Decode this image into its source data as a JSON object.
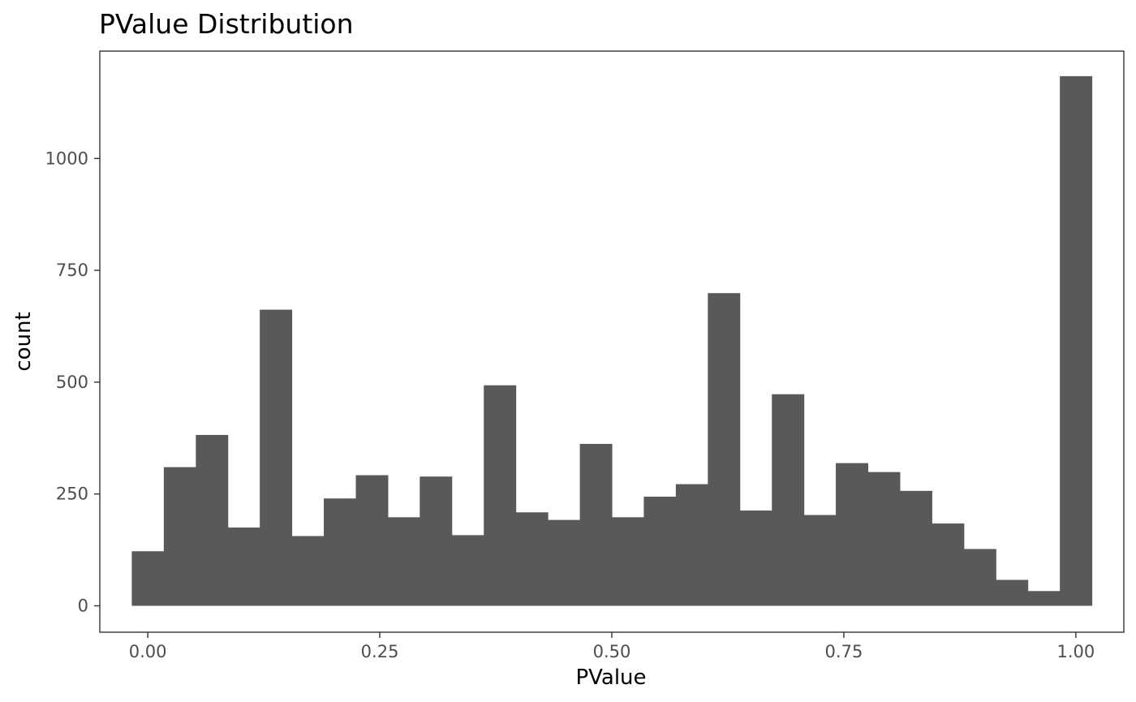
{
  "chart_data": {
    "type": "bar",
    "title": "PValue Distribution",
    "xlabel": "PValue",
    "ylabel": "count",
    "xlim": [
      -0.0517,
      1.0517
    ],
    "ylim": [
      -59,
      1240
    ],
    "x_ticks": [
      0.0,
      0.25,
      0.5,
      0.75,
      1.0
    ],
    "x_tick_labels": [
      "0.00",
      "0.25",
      "0.50",
      "0.75",
      "1.00"
    ],
    "y_ticks": [
      0,
      250,
      500,
      750,
      1000
    ],
    "y_tick_labels": [
      "0",
      "250",
      "500",
      "750",
      "1000"
    ],
    "grid": false,
    "bin_width": 0.0345,
    "bin_centers": [
      0.0,
      0.0345,
      0.069,
      0.1034,
      0.1379,
      0.1724,
      0.2069,
      0.2414,
      0.2759,
      0.3103,
      0.3448,
      0.3793,
      0.4138,
      0.4483,
      0.4828,
      0.5172,
      0.5517,
      0.5862,
      0.6207,
      0.6552,
      0.6897,
      0.7241,
      0.7586,
      0.7931,
      0.8276,
      0.8621,
      0.8966,
      0.931,
      0.9655,
      1.0
    ],
    "values": [
      122,
      310,
      382,
      175,
      662,
      156,
      240,
      292,
      198,
      289,
      158,
      493,
      209,
      192,
      362,
      198,
      244,
      272,
      699,
      213,
      473,
      203,
      319,
      299,
      257,
      184,
      127,
      58,
      33,
      1184
    ],
    "bar_color": "#595959",
    "panel_border_color": "#333333",
    "tick_label_color": "#4d4d4d"
  }
}
